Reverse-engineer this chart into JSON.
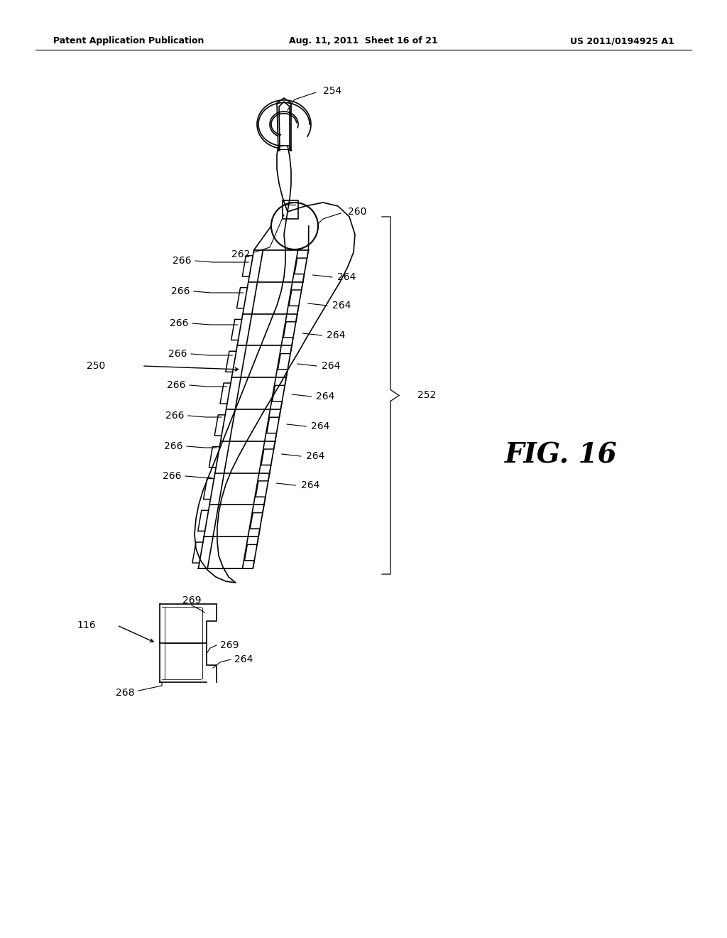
{
  "bg_color": "#ffffff",
  "header_left": "Patent Application Publication",
  "header_mid": "Aug. 11, 2011  Sheet 16 of 21",
  "header_right": "US 2011/0194925 A1",
  "fig_label": "FIG. 16",
  "line_color": "#000000",
  "lw": 1.2
}
